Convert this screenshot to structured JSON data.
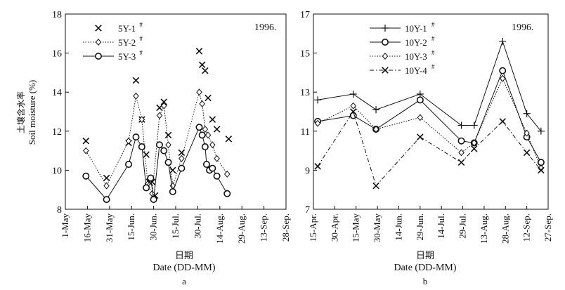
{
  "figure": {
    "ylabel_cn": "土壤含水率",
    "ylabel_en": "Soil moisture (%)",
    "xlabel_cn": "日期",
    "xlabel_en": "Date (DD-MM)"
  },
  "chart_data": [
    {
      "type": "line",
      "panel_label": "a",
      "year": "1996.",
      "xlabel_cn": "日期",
      "xlabel_en": "Date (DD-MM)",
      "ylabel_cn": "土壤含水率",
      "ylabel_en": "Soil moisture (%)",
      "ylim": [
        8,
        18
      ],
      "yticks": [
        8,
        10,
        12,
        14,
        16,
        18
      ],
      "x_domain_days": [
        0,
        150
      ],
      "xtick_days": [
        0,
        15,
        30,
        45,
        60,
        75,
        90,
        105,
        120,
        135,
        150
      ],
      "xtick_labels": [
        "1-May",
        "16-May",
        "31-May",
        "15-Jun.",
        "30-Jun.",
        "15-Jul.",
        "30-Jul.",
        "14-Aug.",
        "29-Aug.",
        "13-Sep.",
        "28-Sep."
      ],
      "series": [
        {
          "name": "5Y-1",
          "superscript": "#",
          "marker": "x",
          "line": "none",
          "points": [
            [
              14,
              11.5
            ],
            [
              28,
              9.6
            ],
            [
              43,
              11.4
            ],
            [
              48,
              14.6
            ],
            [
              52,
              12.6
            ],
            [
              55,
              10.8
            ],
            [
              57,
              9.4
            ],
            [
              59,
              9.4
            ],
            [
              61,
              8.7
            ],
            [
              64,
              13.2
            ],
            [
              67,
              13.5
            ],
            [
              70,
              11.8
            ],
            [
              73,
              10
            ],
            [
              79,
              10.9
            ],
            [
              91,
              16.1
            ],
            [
              93,
              15.4
            ],
            [
              95,
              15.1
            ],
            [
              97,
              13.7
            ],
            [
              100,
              12.6
            ],
            [
              103,
              12.1
            ],
            [
              111,
              11.6
            ]
          ]
        },
        {
          "name": "5Y-2",
          "superscript": "#",
          "marker": "diamond",
          "line": "dotted",
          "points": [
            [
              14,
              11
            ],
            [
              28,
              9.2
            ],
            [
              43,
              11.5
            ],
            [
              48,
              13.8
            ],
            [
              52,
              12.6
            ],
            [
              56,
              9.3
            ],
            [
              59,
              8.8
            ],
            [
              64,
              12.8
            ],
            [
              67,
              13.3
            ],
            [
              70,
              11.3
            ],
            [
              73,
              9.2
            ],
            [
              79,
              10.6
            ],
            [
              91,
              14
            ],
            [
              93,
              13.4
            ],
            [
              95,
              12.1
            ],
            [
              97,
              11.8
            ],
            [
              100,
              11.3
            ],
            [
              103,
              10.6
            ],
            [
              110,
              9.8
            ]
          ]
        },
        {
          "name": "5Y-3",
          "superscript": "#",
          "marker": "circle",
          "line": "solid",
          "points": [
            [
              14,
              9.7
            ],
            [
              28,
              8.5
            ],
            [
              43,
              10.3
            ],
            [
              48,
              11.7
            ],
            [
              52,
              11.2
            ],
            [
              55,
              9.1
            ],
            [
              58,
              9.6
            ],
            [
              60,
              8.5
            ],
            [
              64,
              11.3
            ],
            [
              67,
              11
            ],
            [
              70,
              10.4
            ],
            [
              73,
              8.9
            ],
            [
              79,
              10.1
            ],
            [
              91,
              12.2
            ],
            [
              93,
              11.8
            ],
            [
              95,
              11.2
            ],
            [
              96,
              10.3
            ],
            [
              98,
              10
            ],
            [
              100,
              10.1
            ],
            [
              103,
              9.7
            ],
            [
              110,
              8.8
            ]
          ]
        }
      ]
    },
    {
      "type": "line",
      "panel_label": "b",
      "year": "1996.",
      "xlabel_cn": "日期",
      "xlabel_en": "Date (DD-MM)",
      "ylim": [
        7,
        17
      ],
      "yticks": [
        7,
        9,
        11,
        13,
        15,
        17
      ],
      "x_domain_days": [
        0,
        165
      ],
      "xtick_days": [
        0,
        15,
        30,
        45,
        60,
        75,
        90,
        105,
        120,
        135,
        150,
        165
      ],
      "xtick_labels": [
        "15-Apr.",
        "30-Apr.",
        "15-May",
        "30-May",
        "14-Jun.",
        "29-Jun.",
        "14-Jul.",
        "29-Jul.",
        "13-Aug.",
        "28-Aug.",
        "12-Sep.",
        "27-Sep."
      ],
      "series": [
        {
          "name": "10Y-1",
          "superscript": "#",
          "marker": "plus",
          "line": "solid",
          "points": [
            [
              3,
              12.6
            ],
            [
              28,
              12.9
            ],
            [
              44,
              12.1
            ],
            [
              75,
              12.9
            ],
            [
              104,
              11.3
            ],
            [
              113,
              11.3
            ],
            [
              133,
              15.6
            ],
            [
              150,
              11.9
            ],
            [
              160,
              11
            ]
          ]
        },
        {
          "name": "10Y-2",
          "superscript": "#",
          "marker": "circle",
          "line": "solid",
          "points": [
            [
              3,
              11.5
            ],
            [
              28,
              11.8
            ],
            [
              44,
              11.1
            ],
            [
              75,
              12.6
            ],
            [
              104,
              10.5
            ],
            [
              113,
              10.4
            ],
            [
              133,
              14.1
            ],
            [
              150,
              10.7
            ],
            [
              160,
              9.4
            ]
          ]
        },
        {
          "name": "10Y-3",
          "superscript": "#",
          "marker": "diamond",
          "line": "dotted",
          "points": [
            [
              3,
              11.4
            ],
            [
              28,
              12.3
            ],
            [
              44,
              11.1
            ],
            [
              75,
              11.7
            ],
            [
              104,
              9.9
            ],
            [
              113,
              10.4
            ],
            [
              133,
              13.7
            ],
            [
              150,
              10.9
            ],
            [
              160,
              9.1
            ]
          ]
        },
        {
          "name": "10Y-4",
          "superscript": "#",
          "marker": "x",
          "line": "dashdot",
          "points": [
            [
              3,
              9.2
            ],
            [
              28,
              12
            ],
            [
              44,
              8.2
            ],
            [
              75,
              10.7
            ],
            [
              104,
              9.4
            ],
            [
              113,
              10.1
            ],
            [
              133,
              11.5
            ],
            [
              150,
              9.9
            ],
            [
              160,
              9
            ]
          ]
        }
      ]
    }
  ]
}
